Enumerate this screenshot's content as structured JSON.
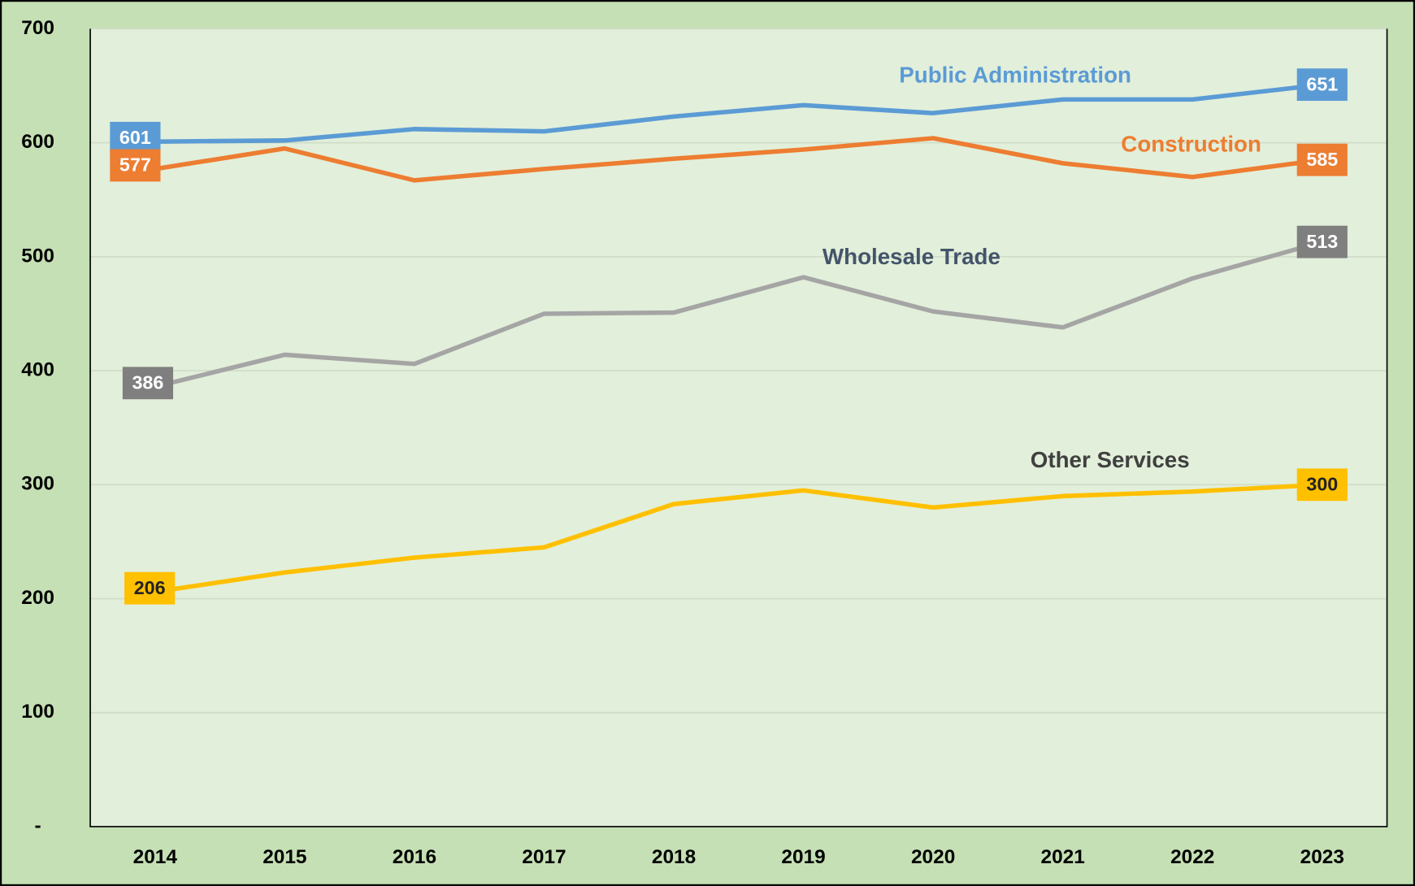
{
  "chart_data": {
    "type": "line",
    "categories": [
      "2014",
      "2015",
      "2016",
      "2017",
      "2018",
      "2019",
      "2020",
      "2021",
      "2022",
      "2023"
    ],
    "series": [
      {
        "name": "Public Administration",
        "color": "#5b9bd5",
        "values": [
          601,
          602,
          612,
          610,
          623,
          633,
          626,
          638,
          638,
          651
        ]
      },
      {
        "name": "Construction",
        "color": "#ed7d31",
        "values": [
          577,
          595,
          567,
          577,
          586,
          594,
          604,
          582,
          570,
          585
        ]
      },
      {
        "name": "Wholesale Trade",
        "color": "#a5a5a5",
        "values": [
          386,
          414,
          406,
          450,
          451,
          482,
          452,
          438,
          481,
          513
        ]
      },
      {
        "name": "Other Services",
        "color": "#ffc000",
        "values": [
          206,
          223,
          236,
          245,
          283,
          295,
          280,
          290,
          294,
          300
        ]
      }
    ],
    "ylim": [
      0,
      700
    ],
    "yticks": [
      {
        "value": 0,
        "label": "-"
      },
      100,
      200,
      300,
      400,
      500,
      600,
      700
    ],
    "grid": true
  }
}
